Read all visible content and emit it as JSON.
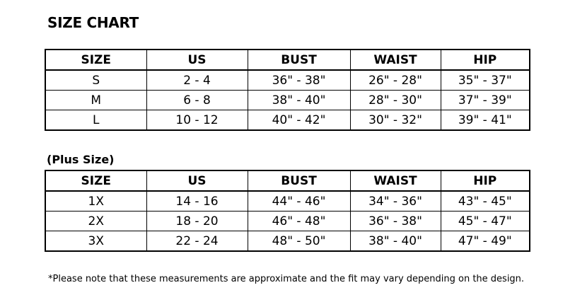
{
  "title": "SIZE CHART",
  "columns": [
    "SIZE",
    "US",
    "BUST",
    "WAIST",
    "HIP"
  ],
  "standard": {
    "rows": [
      [
        "S",
        "2 - 4",
        "36\" - 38\"",
        "26\" - 28\"",
        "35\" - 37\""
      ],
      [
        "M",
        "6 - 8",
        "38\" - 40\"",
        "28\" - 30\"",
        "37\" - 39\""
      ],
      [
        "L",
        "10 - 12",
        "40\" - 42\"",
        "30\" - 32\"",
        "39\" - 41\""
      ]
    ]
  },
  "plus": {
    "label": "(Plus Size)",
    "rows": [
      [
        "1X",
        "14 - 16",
        "44\" - 46\"",
        "34\" - 36\"",
        "43\" - 45\""
      ],
      [
        "2X",
        "18 - 20",
        "46\" - 48\"",
        "36\" - 38\"",
        "45\" - 47\""
      ],
      [
        "3X",
        "22 - 24",
        "48\" - 50\"",
        "38\" - 40\"",
        "47\" - 49\""
      ]
    ]
  },
  "note": "*Please note that these measurements are approximate and the fit may vary depending on the design."
}
